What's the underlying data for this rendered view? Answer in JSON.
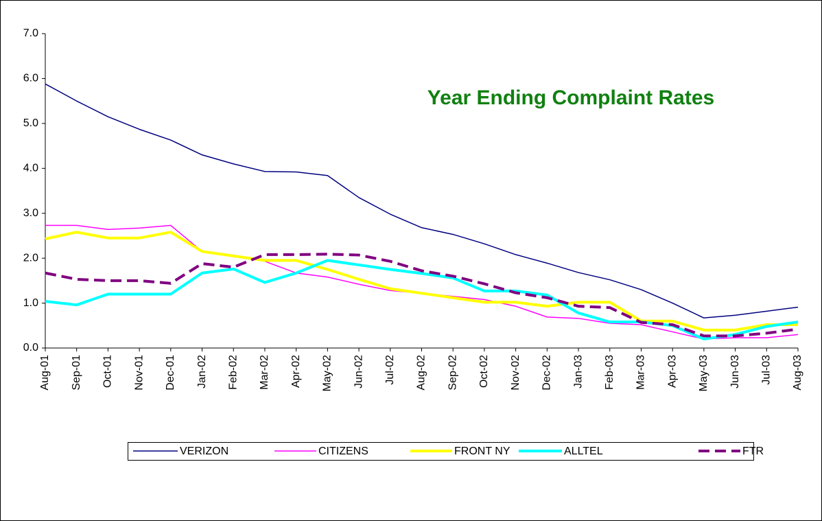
{
  "chart_data": {
    "type": "line",
    "title": "Year Ending Complaint Rates",
    "title_color": "#108010",
    "categories": [
      "Aug-01",
      "Sep-01",
      "Oct-01",
      "Nov-01",
      "Dec-01",
      "Jan-02",
      "Feb-02",
      "Mar-02",
      "Apr-02",
      "May-02",
      "Jun-02",
      "Jul-02",
      "Aug-02",
      "Sep-02",
      "Oct-02",
      "Nov-02",
      "Dec-02",
      "Jan-03",
      "Feb-03",
      "Mar-03",
      "Apr-03",
      "May-03",
      "Jun-03",
      "Jul-03",
      "Aug-03"
    ],
    "series": [
      {
        "name": "VERIZON",
        "color": "#000080",
        "width": 1.5,
        "dashed": false,
        "values": [
          5.88,
          5.5,
          5.15,
          4.87,
          4.63,
          4.3,
          4.1,
          3.93,
          3.92,
          3.84,
          3.35,
          2.98,
          2.68,
          2.53,
          2.32,
          2.08,
          1.89,
          1.68,
          1.52,
          1.3,
          1.0,
          0.67,
          0.73,
          0.82,
          0.91
        ]
      },
      {
        "name": "CITIZENS",
        "color": "#ff00ff",
        "width": 1.5,
        "dashed": false,
        "values": [
          2.73,
          2.73,
          2.64,
          2.67,
          2.73,
          2.15,
          2.07,
          1.93,
          1.67,
          1.58,
          1.42,
          1.28,
          1.22,
          1.15,
          1.08,
          0.93,
          0.69,
          0.66,
          0.55,
          0.52,
          0.36,
          0.2,
          0.23,
          0.23,
          0.3
        ]
      },
      {
        "name": "FRONT NY",
        "color": "#ffff00",
        "width": 4,
        "dashed": false,
        "values": [
          2.43,
          2.58,
          2.45,
          2.45,
          2.58,
          2.15,
          2.05,
          1.95,
          1.95,
          1.75,
          1.53,
          1.32,
          1.22,
          1.12,
          1.02,
          1.02,
          0.93,
          1.02,
          1.02,
          0.6,
          0.6,
          0.4,
          0.4,
          0.52,
          0.52
        ]
      },
      {
        "name": "ALLTEL",
        "color": "#00ffff",
        "width": 4,
        "dashed": false,
        "values": [
          1.04,
          0.96,
          1.2,
          1.2,
          1.2,
          1.67,
          1.76,
          1.46,
          1.67,
          1.95,
          1.85,
          1.75,
          1.66,
          1.56,
          1.27,
          1.27,
          1.18,
          0.78,
          0.58,
          0.58,
          0.5,
          0.2,
          0.3,
          0.48,
          0.58
        ]
      },
      {
        "name": "FTR",
        "color": "#800080",
        "width": 4,
        "dashed": true,
        "values": [
          1.67,
          1.53,
          1.5,
          1.5,
          1.44,
          1.88,
          1.8,
          2.08,
          2.08,
          2.09,
          2.07,
          1.93,
          1.72,
          1.6,
          1.43,
          1.23,
          1.12,
          0.93,
          0.9,
          0.57,
          0.52,
          0.27,
          0.27,
          0.33,
          0.42
        ]
      }
    ],
    "ylim": [
      0,
      7
    ],
    "yticks": [
      {
        "value": 0,
        "label": "0.0"
      },
      {
        "value": 1,
        "label": "1.0"
      },
      {
        "value": 2,
        "label": "2.0"
      },
      {
        "value": 3,
        "label": "3.0"
      },
      {
        "value": 4,
        "label": "4.0"
      },
      {
        "value": 5,
        "label": "5.0"
      },
      {
        "value": 6,
        "label": "6.0"
      },
      {
        "value": 7,
        "label": "7.0"
      }
    ],
    "grid": false,
    "legend": "bottom"
  }
}
